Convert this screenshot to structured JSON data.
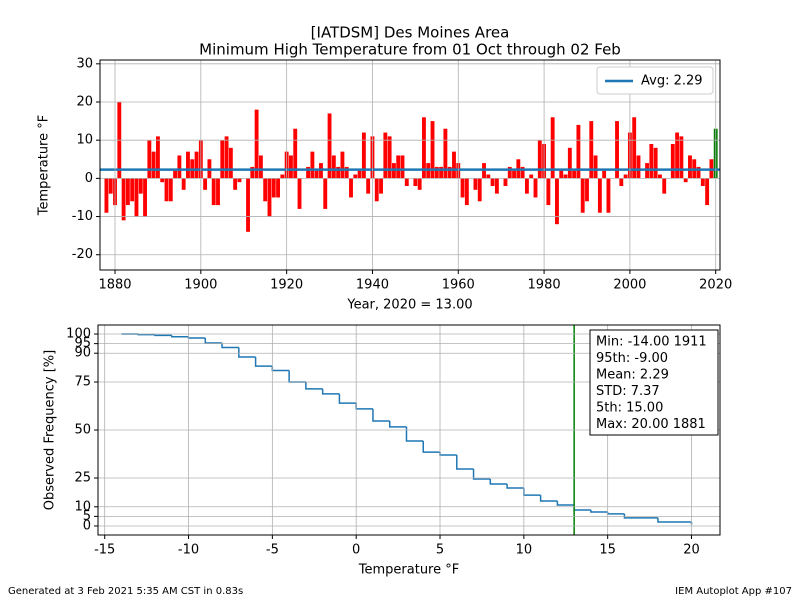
{
  "chart_data": [
    {
      "type": "bar",
      "title": "[IATDSM] Des Moines Area",
      "subtitle": "Minimum High Temperature from 01 Oct through 02 Feb",
      "xlabel": "Year, 2020 = 13.00",
      "ylabel": "Temperature  °F",
      "x": [
        1878,
        1879,
        1880,
        1881,
        1882,
        1883,
        1884,
        1885,
        1886,
        1887,
        1888,
        1889,
        1890,
        1891,
        1892,
        1893,
        1894,
        1895,
        1896,
        1897,
        1898,
        1899,
        1900,
        1901,
        1902,
        1903,
        1904,
        1905,
        1906,
        1907,
        1908,
        1909,
        1910,
        1911,
        1912,
        1913,
        1914,
        1915,
        1916,
        1917,
        1918,
        1919,
        1920,
        1921,
        1922,
        1923,
        1924,
        1925,
        1926,
        1927,
        1928,
        1929,
        1930,
        1931,
        1932,
        1933,
        1934,
        1935,
        1936,
        1937,
        1938,
        1939,
        1940,
        1941,
        1942,
        1943,
        1944,
        1945,
        1946,
        1947,
        1948,
        1949,
        1950,
        1951,
        1952,
        1953,
        1954,
        1955,
        1956,
        1957,
        1958,
        1959,
        1960,
        1961,
        1962,
        1963,
        1964,
        1965,
        1966,
        1967,
        1968,
        1969,
        1970,
        1971,
        1972,
        1973,
        1974,
        1975,
        1976,
        1977,
        1978,
        1979,
        1980,
        1981,
        1982,
        1983,
        1984,
        1985,
        1986,
        1987,
        1988,
        1989,
        1990,
        1991,
        1992,
        1993,
        1994,
        1995,
        1996,
        1997,
        1998,
        1999,
        2000,
        2001,
        2002,
        2003,
        2004,
        2005,
        2006,
        2007,
        2008,
        2009,
        2010,
        2011,
        2012,
        2013,
        2014,
        2015,
        2016,
        2017,
        2018,
        2019,
        2020
      ],
      "values": [
        -9,
        -4,
        -7,
        20,
        -11,
        -7,
        -6,
        -10,
        -4,
        -10,
        10,
        7,
        11,
        -1,
        -6,
        -6,
        2,
        6,
        -3,
        7,
        5,
        7,
        10,
        -3,
        5,
        -7,
        -7,
        10,
        11,
        8,
        -3,
        -1,
        0,
        -14,
        3,
        18,
        6,
        -6,
        -10,
        -5,
        -5,
        1,
        7,
        6,
        13,
        -8,
        0,
        3,
        7,
        2,
        4,
        -8,
        17,
        6,
        3,
        7,
        3,
        -5,
        1,
        2,
        12,
        -4,
        11,
        -6,
        -4,
        12,
        11,
        4,
        6,
        6,
        -2,
        0,
        -2,
        -3,
        16,
        4,
        15,
        3,
        3,
        13,
        3,
        7,
        4,
        -5,
        -7,
        0,
        -3,
        -6,
        4,
        1,
        -2,
        -4,
        0,
        -2,
        3,
        2,
        5,
        3,
        -4,
        1,
        -5,
        10,
        9,
        -7,
        16,
        -12,
        2,
        1,
        8,
        2,
        14,
        -9,
        -6,
        15,
        6,
        -9,
        2,
        -9,
        0,
        15,
        -2,
        1,
        12,
        16,
        6,
        0,
        4,
        9,
        8,
        1,
        -4,
        0,
        9,
        12,
        11,
        -1,
        6,
        5,
        3,
        -2,
        -7,
        5,
        13
      ],
      "color": "#ff0000",
      "last_color": "#008000",
      "hline": {
        "name": "Avg: 2.29",
        "value": 2.29,
        "color": "#1f77b4"
      },
      "legend": "upper right",
      "xlim": [
        1876.5,
        2021
      ],
      "xticks": [
        1880,
        1900,
        1920,
        1940,
        1960,
        1980,
        2000,
        2020
      ],
      "ylim": [
        -24,
        31
      ],
      "yticks": [
        -20,
        -10,
        0,
        10,
        20,
        30
      ],
      "grid": true
    },
    {
      "type": "line",
      "step": "post",
      "xlabel": "Temperature  °F",
      "ylabel": "Observed Frequency [%]",
      "x": [
        -14,
        -13,
        -12,
        -11,
        -10,
        -9,
        -8,
        -7,
        -6,
        -5,
        -4,
        -3,
        -2,
        -1,
        0,
        1,
        2,
        3,
        4,
        5,
        6,
        7,
        8,
        9,
        10,
        11,
        12,
        13,
        14,
        15,
        16,
        18,
        20
      ],
      "values": [
        100,
        99.7,
        99.3,
        98.6,
        97.9,
        95.3,
        93,
        88,
        83.3,
        81,
        75,
        71.4,
        68.8,
        64,
        61,
        54.7,
        51.6,
        44.3,
        38.5,
        37,
        29.7,
        24.5,
        21.9,
        19.8,
        16.1,
        13,
        10.9,
        8.3,
        7.3,
        6.3,
        4.2,
        2.1,
        0.7
      ],
      "color": "#1f77b4",
      "vline": {
        "value": 13,
        "color": "#008000"
      },
      "annotation": [
        "Min: -14.00 1911",
        "95th: -9.00",
        "Mean: 2.29",
        "STD: 7.37",
        "5th: 15.00",
        "Max: 20.00 1881"
      ],
      "xlim": [
        -15.4,
        21.7
      ],
      "xticks": [
        -15,
        -10,
        -5,
        0,
        5,
        10,
        15,
        20
      ],
      "ylim": [
        -4.7,
        104.7
      ],
      "yticks": [
        0,
        5,
        10,
        25,
        50,
        75,
        90,
        95,
        100
      ],
      "grid": true
    }
  ],
  "footer": {
    "left": "Generated at 3 Feb 2021 5:35 AM CST in 0.83s",
    "right": "IEM Autoplot App #107"
  }
}
